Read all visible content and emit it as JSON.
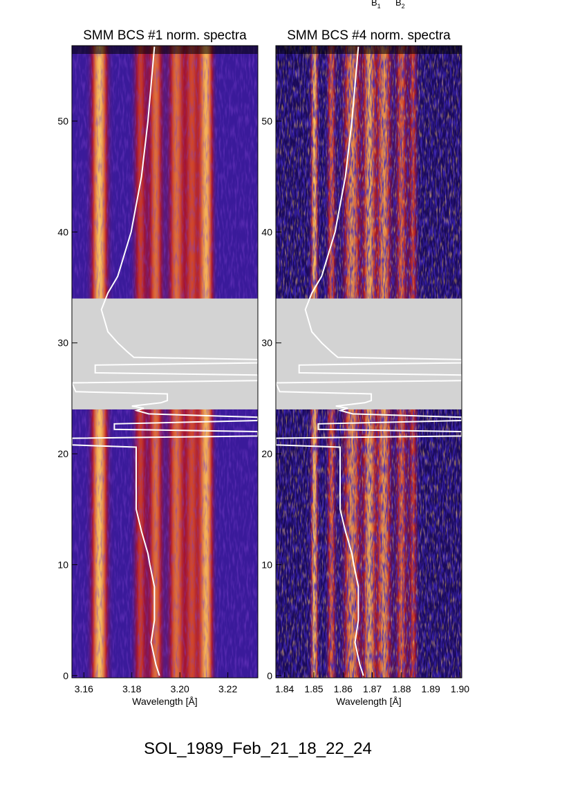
{
  "header_labels": {
    "b1": "B",
    "b1_sub": "1",
    "b2": "B",
    "b2_sub": "2"
  },
  "figure_label": "SOL_1989_Feb_21_18_22_24",
  "chart_data": [
    {
      "type": "heatmap",
      "title": "SMM BCS #1 norm. spectra",
      "xlabel": "Wavelength [Å]",
      "ylabel": "",
      "xlim": [
        3.155,
        3.2325
      ],
      "ylim": [
        -0.2,
        56.8
      ],
      "xticks": [
        "3.16",
        "3.18",
        "3.20",
        "3.22"
      ],
      "xtick_values": [
        3.16,
        3.18,
        3.2,
        3.22
      ],
      "yticks": [
        "0",
        "10",
        "20",
        "30",
        "40",
        "50"
      ],
      "data_gap": [
        24.0,
        34.0
      ],
      "spectral_lines": [
        {
          "wavelength": 3.1665,
          "intensity": 1.0,
          "width": 0.0035
        },
        {
          "wavelength": 3.1835,
          "intensity": 0.6,
          "width": 0.003
        },
        {
          "wavelength": 3.19,
          "intensity": 0.75,
          "width": 0.003
        },
        {
          "wavelength": 3.1985,
          "intensity": 0.75,
          "width": 0.0035
        },
        {
          "wavelength": 3.205,
          "intensity": 0.6,
          "width": 0.003
        },
        {
          "wavelength": 3.211,
          "intensity": 0.95,
          "width": 0.003
        }
      ],
      "colors": {
        "background": "#3a1a9a",
        "mid": "#c01818",
        "peak": "#f8c060",
        "gap": "#d3d3d3",
        "curve": "#ffffff"
      }
    },
    {
      "type": "heatmap",
      "title": "SMM BCS #4 norm. spectra",
      "xlabel": "Wavelength [Å]",
      "ylabel": "",
      "xlim": [
        1.837,
        1.9006
      ],
      "ylim": [
        -0.2,
        56.8
      ],
      "xticks": [
        "1.84",
        "1.85",
        "1.86",
        "1.87",
        "1.88",
        "1.89",
        "1.90"
      ],
      "xtick_values": [
        1.84,
        1.85,
        1.86,
        1.87,
        1.88,
        1.89,
        1.9
      ],
      "yticks": [
        "0",
        "10",
        "20",
        "30",
        "40",
        "50"
      ],
      "data_gap": [
        24.0,
        34.0
      ],
      "spectral_lines": [
        {
          "wavelength": 1.8502,
          "intensity": 1.0,
          "width": 0.0012
        },
        {
          "wavelength": 1.856,
          "intensity": 0.7,
          "width": 0.0015
        },
        {
          "wavelength": 1.863,
          "intensity": 0.85,
          "width": 0.003
        },
        {
          "wavelength": 1.869,
          "intensity": 0.9,
          "width": 0.002
        },
        {
          "wavelength": 1.874,
          "intensity": 0.85,
          "width": 0.0025
        },
        {
          "wavelength": 1.88,
          "intensity": 0.7,
          "width": 0.002
        },
        {
          "wavelength": 1.884,
          "intensity": 0.6,
          "width": 0.0015
        }
      ],
      "colors": {
        "background": "#1a0a5a",
        "mid": "#c02010",
        "peak": "#f0a020",
        "gap": "#d3d3d3",
        "curve": "#ffffff"
      }
    }
  ],
  "overlay_curve": {
    "description_units": "time vs. position expressed in panel-1 wavelength [Å]",
    "points": [
      [
        56.7,
        3.1894
      ],
      [
        50,
        3.1867
      ],
      [
        45,
        3.184
      ],
      [
        40,
        3.1797
      ],
      [
        36,
        3.1741
      ],
      [
        34.5,
        3.17
      ],
      [
        33,
        3.1673
      ],
      [
        31,
        3.17
      ],
      [
        30,
        3.1741
      ],
      [
        29.2,
        3.1781
      ],
      [
        28.7,
        3.1808
      ],
      [
        28.5,
        3.2325
      ],
      [
        28.2,
        3.2325
      ],
      [
        28.0,
        3.1647
      ],
      [
        27.3,
        3.1647
      ],
      [
        27.1,
        3.2325
      ],
      [
        26.6,
        3.2325
      ],
      [
        26.4,
        3.155
      ],
      [
        25.6,
        3.1566
      ],
      [
        25.4,
        3.1948
      ],
      [
        24.8,
        3.1948
      ],
      [
        24.6,
        3.1921
      ],
      [
        24.3,
        3.18
      ],
      [
        24.1,
        3.185
      ],
      [
        23.9,
        3.182
      ],
      [
        23.6,
        3.187
      ],
      [
        23.3,
        3.2325
      ],
      [
        23.0,
        3.2325
      ],
      [
        22.7,
        3.1727
      ],
      [
        22.2,
        3.1727
      ],
      [
        22.0,
        3.2325
      ],
      [
        21.6,
        3.2325
      ],
      [
        21.4,
        3.155
      ],
      [
        20.8,
        3.155
      ],
      [
        20.6,
        3.1818
      ],
      [
        15,
        3.1818
      ],
      [
        13,
        3.184
      ],
      [
        11,
        3.1867
      ],
      [
        10,
        3.1875
      ],
      [
        8,
        3.1894
      ],
      [
        5,
        3.1894
      ],
      [
        3,
        3.188
      ],
      [
        1,
        3.19
      ],
      [
        0,
        3.1915
      ]
    ]
  }
}
